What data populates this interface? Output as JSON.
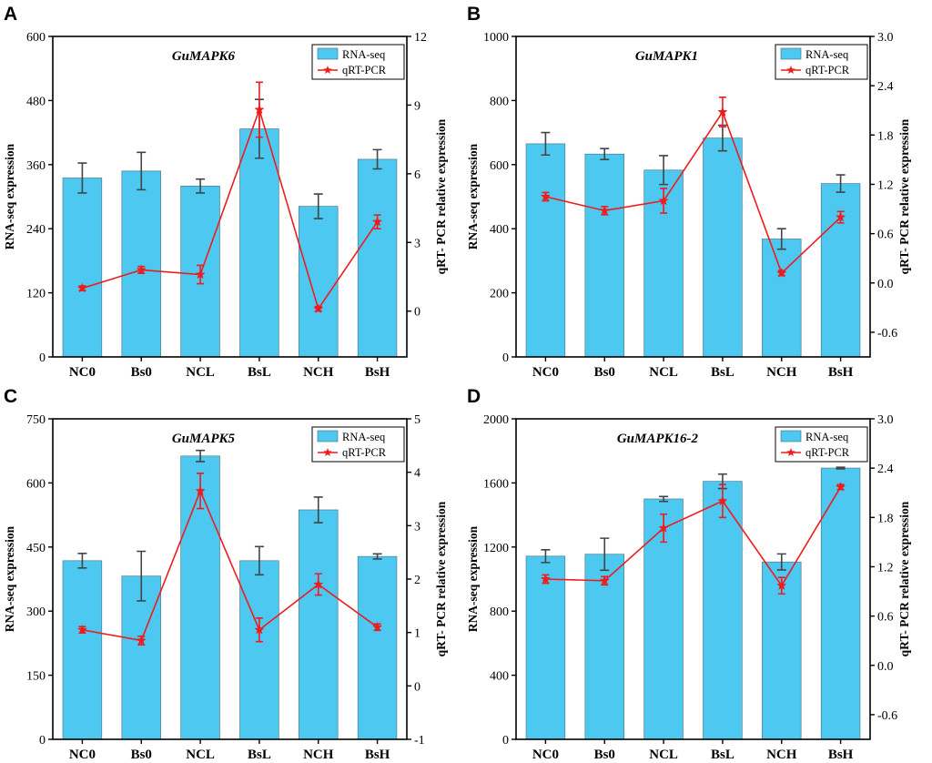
{
  "colors": {
    "bar": "#4dc8f0",
    "bar_stroke": "#4a6a7a",
    "line": "#ee1c1c",
    "axis": "#000000",
    "error": "#444444"
  },
  "legend": {
    "bar_label": "RNA-seq",
    "line_label": "qRT-PCR"
  },
  "chart_data": [
    {
      "panel": "A",
      "type": "bar",
      "title": "GuMAPK6",
      "categories": [
        "NC0",
        "Bs0",
        "NCL",
        "BsL",
        "NCH",
        "BsH"
      ],
      "ylabel": "RNA-seq expression",
      "ylabel_right": "qRT- PCR relative expression",
      "ylim": [
        0,
        600
      ],
      "yticks": [
        "0",
        "120",
        "240",
        "360",
        "480",
        "600"
      ],
      "ylim_right": [
        -2,
        12
      ],
      "yticks_right": [
        "0",
        "3",
        "6",
        "9",
        "12"
      ],
      "series": [
        {
          "name": "RNA-seq",
          "type": "bar",
          "values": [
            335,
            348,
            320,
            427,
            282,
            370
          ],
          "errors": [
            28,
            35,
            13,
            55,
            23,
            18
          ]
        },
        {
          "name": "qRT-PCR",
          "type": "line",
          "values": [
            1.0,
            1.8,
            1.6,
            8.8,
            0.1,
            3.9
          ],
          "errors": [
            0.1,
            0.15,
            0.4,
            1.2,
            0.1,
            0.3
          ]
        }
      ]
    },
    {
      "panel": "B",
      "type": "bar",
      "title": "GuMAPK1",
      "categories": [
        "NC0",
        "Bs0",
        "NCL",
        "BsL",
        "NCH",
        "BsH"
      ],
      "ylabel": "RNA-seq expression",
      "ylabel_right": "qRT- PCR relative expression",
      "ylim": [
        0,
        1000
      ],
      "yticks": [
        "0",
        "200",
        "400",
        "600",
        "800",
        "1000"
      ],
      "ylim_right": [
        -0.9,
        3.0
      ],
      "yticks_right": [
        "-0.6",
        "0.0",
        "0.6",
        "1.2",
        "1.8",
        "2.4",
        "3.0"
      ],
      "series": [
        {
          "name": "RNA-seq",
          "type": "bar",
          "values": [
            665,
            633,
            583,
            683,
            368,
            541
          ],
          "errors": [
            35,
            17,
            45,
            40,
            32,
            27
          ]
        },
        {
          "name": "qRT-PCR",
          "type": "line",
          "values": [
            1.05,
            0.88,
            1.0,
            2.08,
            0.12,
            0.8
          ],
          "errors": [
            0.05,
            0.05,
            0.15,
            0.18,
            0.03,
            0.07
          ]
        }
      ]
    },
    {
      "panel": "C",
      "type": "bar",
      "title": "GuMAPK5",
      "categories": [
        "NC0",
        "Bs0",
        "NCL",
        "BsL",
        "NCH",
        "BsH"
      ],
      "ylabel": "RNA-seq expression",
      "ylabel_right": "qRT- PCR relative expression",
      "ylim": [
        0,
        750
      ],
      "yticks": [
        "0",
        "150",
        "300",
        "450",
        "600",
        "750"
      ],
      "ylim_right": [
        -1,
        5
      ],
      "yticks_right": [
        "-1",
        "0",
        "1",
        "2",
        "3",
        "4",
        "5"
      ],
      "series": [
        {
          "name": "RNA-seq",
          "type": "bar",
          "values": [
            418,
            382,
            663,
            418,
            537,
            428
          ],
          "errors": [
            17,
            58,
            13,
            33,
            30,
            6
          ]
        },
        {
          "name": "qRT-PCR",
          "type": "line",
          "values": [
            1.05,
            0.85,
            3.65,
            1.05,
            1.9,
            1.1
          ],
          "errors": [
            0.06,
            0.08,
            0.33,
            0.22,
            0.2,
            0.06
          ]
        }
      ]
    },
    {
      "panel": "D",
      "type": "bar",
      "title": "GuMAPK16-2",
      "categories": [
        "NC0",
        "Bs0",
        "NCL",
        "BsL",
        "NCH",
        "BsH"
      ],
      "ylabel": "RNA-seq expression",
      "ylabel_right": "qRT- PCR relative expression",
      "ylim": [
        0,
        2000
      ],
      "yticks": [
        "0",
        "400",
        "800",
        "1200",
        "1600",
        "2000"
      ],
      "ylim_right": [
        -0.9,
        3.0
      ],
      "yticks_right": [
        "-0.6",
        "0.0",
        "0.6",
        "1.2",
        "1.8",
        "2.4",
        "3.0"
      ],
      "series": [
        {
          "name": "RNA-seq",
          "type": "bar",
          "values": [
            1143,
            1155,
            1500,
            1610,
            1107,
            1693
          ],
          "errors": [
            40,
            100,
            15,
            45,
            50,
            5
          ]
        },
        {
          "name": "qRT-PCR",
          "type": "line",
          "values": [
            1.05,
            1.03,
            1.67,
            2.0,
            0.97,
            2.17
          ],
          "errors": [
            0.05,
            0.05,
            0.17,
            0.2,
            0.1,
            0.03
          ]
        }
      ]
    }
  ]
}
